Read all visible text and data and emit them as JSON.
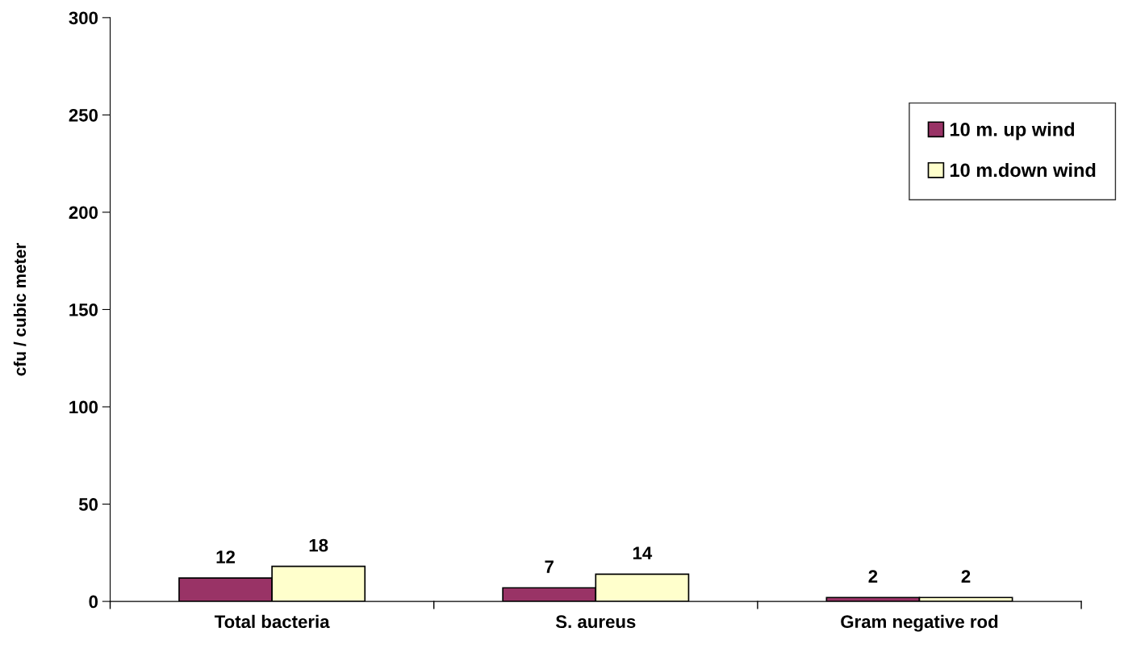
{
  "chart_data": {
    "type": "bar",
    "ylabel": "cfu / cubic meter",
    "categories": [
      "Total bacteria",
      "S. aureus",
      "Gram negative rod"
    ],
    "series": [
      {
        "name": "10 m. up wind",
        "color": "#993366",
        "values": [
          12,
          7,
          2
        ]
      },
      {
        "name": "10 m.down wind",
        "color": "#ffffcc",
        "values": [
          18,
          14,
          2
        ]
      }
    ],
    "ylim": [
      0,
      300
    ],
    "yticks": [
      0,
      50,
      100,
      150,
      200,
      250,
      300
    ],
    "data_labels": true,
    "grid": false,
    "legend": "top right"
  }
}
